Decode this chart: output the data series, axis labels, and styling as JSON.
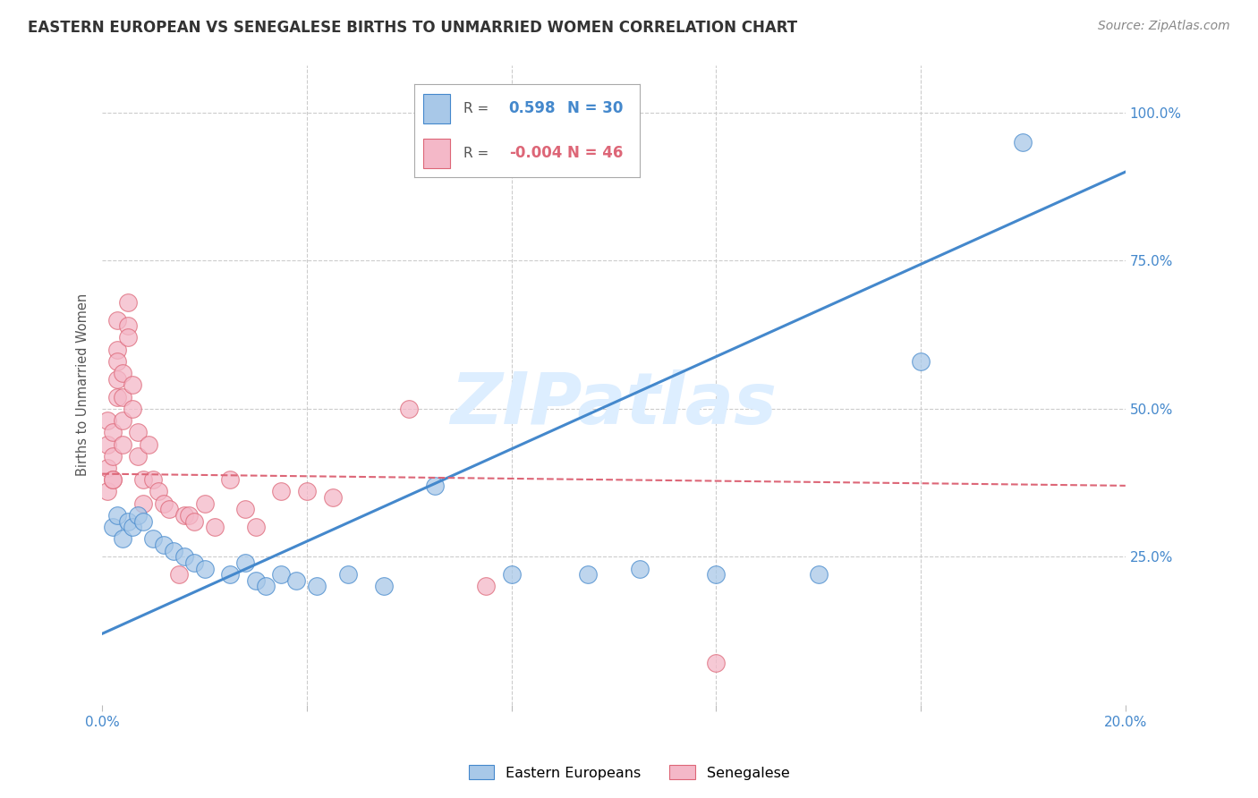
{
  "title": "EASTERN EUROPEAN VS SENEGALESE BIRTHS TO UNMARRIED WOMEN CORRELATION CHART",
  "source": "Source: ZipAtlas.com",
  "ylabel": "Births to Unmarried Women",
  "xlim": [
    0.0,
    0.2
  ],
  "ylim": [
    0.0,
    1.08
  ],
  "xticks": [
    0.0,
    0.04,
    0.08,
    0.12,
    0.16,
    0.2
  ],
  "xticklabels": [
    "0.0%",
    "",
    "",
    "",
    "",
    "20.0%"
  ],
  "yticks_right": [
    0.25,
    0.5,
    0.75,
    1.0
  ],
  "ytick_right_labels": [
    "25.0%",
    "50.0%",
    "75.0%",
    "100.0%"
  ],
  "blue_color": "#a8c8e8",
  "pink_color": "#f4b8c8",
  "blue_line_color": "#4488cc",
  "pink_line_color": "#dd6677",
  "grid_color": "#cccccc",
  "background_color": "#ffffff",
  "watermark_text": "ZIPatlas",
  "watermark_color": "#ddeeff",
  "legend_r_blue": "0.598",
  "legend_n_blue": "30",
  "legend_r_pink": "-0.004",
  "legend_n_pink": "46",
  "blue_x": [
    0.002,
    0.003,
    0.004,
    0.005,
    0.006,
    0.007,
    0.008,
    0.01,
    0.012,
    0.014,
    0.016,
    0.018,
    0.02,
    0.025,
    0.028,
    0.03,
    0.032,
    0.035,
    0.038,
    0.042,
    0.048,
    0.055,
    0.065,
    0.08,
    0.095,
    0.105,
    0.12,
    0.14,
    0.16,
    0.18
  ],
  "blue_y": [
    0.3,
    0.32,
    0.28,
    0.31,
    0.3,
    0.32,
    0.31,
    0.28,
    0.27,
    0.26,
    0.25,
    0.24,
    0.23,
    0.22,
    0.24,
    0.21,
    0.2,
    0.22,
    0.21,
    0.2,
    0.22,
    0.2,
    0.37,
    0.22,
    0.22,
    0.23,
    0.22,
    0.22,
    0.58,
    0.95
  ],
  "pink_x": [
    0.001,
    0.001,
    0.001,
    0.001,
    0.002,
    0.002,
    0.002,
    0.002,
    0.003,
    0.003,
    0.003,
    0.003,
    0.003,
    0.004,
    0.004,
    0.004,
    0.004,
    0.005,
    0.005,
    0.005,
    0.006,
    0.006,
    0.007,
    0.007,
    0.008,
    0.008,
    0.009,
    0.01,
    0.011,
    0.012,
    0.013,
    0.015,
    0.016,
    0.017,
    0.018,
    0.02,
    0.022,
    0.025,
    0.028,
    0.03,
    0.035,
    0.04,
    0.045,
    0.06,
    0.075,
    0.12
  ],
  "pink_y": [
    0.36,
    0.4,
    0.44,
    0.48,
    0.38,
    0.42,
    0.46,
    0.38,
    0.55,
    0.6,
    0.65,
    0.58,
    0.52,
    0.48,
    0.52,
    0.56,
    0.44,
    0.64,
    0.68,
    0.62,
    0.5,
    0.54,
    0.46,
    0.42,
    0.38,
    0.34,
    0.44,
    0.38,
    0.36,
    0.34,
    0.33,
    0.22,
    0.32,
    0.32,
    0.31,
    0.34,
    0.3,
    0.38,
    0.33,
    0.3,
    0.36,
    0.36,
    0.35,
    0.5,
    0.2,
    0.07
  ],
  "blue_line_y0": 0.12,
  "blue_line_y1": 0.9,
  "pink_line_y": 0.38
}
